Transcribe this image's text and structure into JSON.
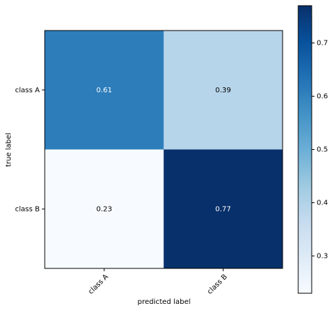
{
  "chart_data": {
    "type": "heatmap",
    "x_categories": [
      "class A",
      "class B"
    ],
    "y_categories": [
      "class A",
      "class B"
    ],
    "values": [
      [
        0.61,
        0.39
      ],
      [
        0.23,
        0.77
      ]
    ],
    "xlabel": "predicted label",
    "ylabel": "true label",
    "colormap": "Blues",
    "colorbar_lim": [
      0.23,
      0.77
    ],
    "colorbar_ticks": [
      0.3,
      0.4,
      0.5,
      0.6,
      0.7
    ]
  }
}
